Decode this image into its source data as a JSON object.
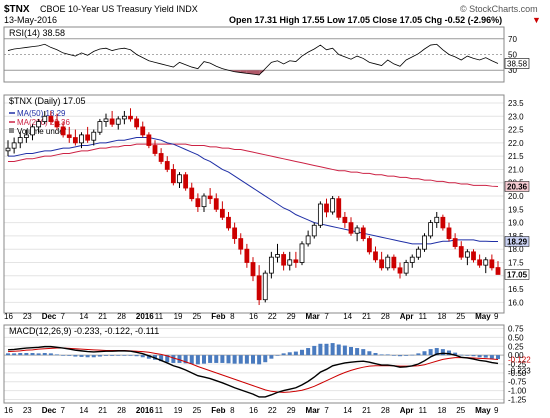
{
  "header": {
    "symbol": "$TNX",
    "name": "CBOE 10-Year US Treasury Yield INDX",
    "date": "13-May-2016",
    "watermark": "© StockCharts.com",
    "quote": "Open 17.31  High 17.55  Low 17.05  Close 17.05  Chg -0.52 (-2.96%)",
    "quote_arrow": "▼"
  },
  "rsi_panel": {
    "label": "RSI(14) 38.58",
    "last_value": "38.58",
    "ticks": [
      "70",
      "50",
      "30"
    ]
  },
  "price_panel": {
    "legend_title": "$TNX (Daily) 17.05",
    "legend_ma50": "MA(50) 18.29",
    "legend_ma200": "MA(200) 20.36",
    "legend_volume": "Volume undef",
    "ticks": [
      "23.5",
      "23.0",
      "22.5",
      "22.0",
      "21.5",
      "21.0",
      "20.5",
      "20.0",
      "19.5",
      "19.0",
      "18.5",
      "18.0",
      "17.5",
      "17.0",
      "16.5",
      "16.0"
    ],
    "last_close_label": "17.05",
    "ma50_label": "18.29",
    "ma200_label": "20.36"
  },
  "xaxis_ticks": [
    "16",
    "23",
    "Dec",
    "7",
    "14",
    "21",
    "28",
    "2016",
    "11",
    "19",
    "25",
    "Feb",
    "8",
    "16",
    "22",
    "29",
    "Mar",
    "7",
    "14",
    "21",
    "28",
    "Apr",
    "11",
    "18",
    "25",
    "May",
    "9"
  ],
  "macd_panel": {
    "label": "MACD(12,26,9) -0.233, -0.122, -0.111",
    "ticks": [
      "0.75",
      "0.50",
      "0.25",
      "0.00",
      "-0.25",
      "-0.50",
      "-0.75",
      "-1.00",
      "-1.25"
    ],
    "label_macd": "-0.233",
    "label_signal": "-0.122"
  },
  "colors": {
    "up": "#000000",
    "down": "#cc0000",
    "ma50": "#1f2fa6",
    "ma200": "#cc2244",
    "macd_line": "#000000",
    "signal_line": "#cc0000",
    "histogram": "#4a7bbf",
    "grid": "#e4e4e4"
  },
  "chart_data": {
    "type": "candlestick",
    "title": "CBOE 10-Year US Treasury Yield INDX",
    "ylim": [
      15.6,
      23.8
    ],
    "ohlc": [
      [
        21.7,
        22.1,
        21.5,
        21.8
      ],
      [
        21.8,
        22.2,
        21.6,
        22.0
      ],
      [
        22.0,
        22.4,
        21.8,
        22.2
      ],
      [
        22.2,
        22.5,
        22.0,
        22.3
      ],
      [
        22.3,
        22.7,
        22.1,
        22.6
      ],
      [
        22.6,
        22.9,
        22.4,
        22.8
      ],
      [
        22.8,
        23.2,
        22.7,
        23.0
      ],
      [
        23.0,
        23.2,
        22.7,
        22.8
      ],
      [
        22.8,
        23.1,
        22.5,
        22.6
      ],
      [
        22.6,
        22.8,
        22.2,
        22.3
      ],
      [
        22.3,
        22.6,
        22.0,
        22.2
      ],
      [
        22.2,
        22.5,
        21.9,
        22.0
      ],
      [
        22.0,
        22.4,
        21.8,
        22.3
      ],
      [
        22.3,
        22.6,
        22.0,
        22.1
      ],
      [
        22.1,
        22.5,
        21.9,
        22.4
      ],
      [
        22.4,
        22.9,
        22.3,
        22.8
      ],
      [
        22.8,
        23.1,
        22.6,
        22.9
      ],
      [
        22.9,
        23.2,
        22.6,
        22.7
      ],
      [
        22.7,
        23.0,
        22.5,
        22.9
      ],
      [
        22.9,
        23.2,
        22.7,
        23.0
      ],
      [
        23.0,
        23.3,
        22.8,
        22.9
      ],
      [
        22.9,
        23.0,
        22.5,
        22.6
      ],
      [
        22.6,
        22.8,
        22.2,
        22.3
      ],
      [
        22.3,
        22.4,
        21.8,
        21.9
      ],
      [
        21.9,
        22.1,
        21.5,
        21.6
      ],
      [
        21.6,
        21.8,
        21.2,
        21.3
      ],
      [
        21.3,
        21.5,
        20.9,
        21.0
      ],
      [
        21.0,
        21.2,
        20.4,
        20.5
      ],
      [
        20.5,
        20.9,
        20.3,
        20.8
      ],
      [
        20.8,
        20.9,
        20.2,
        20.3
      ],
      [
        20.3,
        20.5,
        19.8,
        19.9
      ],
      [
        19.9,
        20.1,
        19.4,
        19.6
      ],
      [
        19.6,
        20.1,
        19.4,
        20.0
      ],
      [
        20.0,
        20.3,
        19.7,
        19.9
      ],
      [
        19.9,
        20.1,
        19.4,
        19.5
      ],
      [
        19.5,
        19.8,
        19.1,
        19.2
      ],
      [
        19.2,
        19.4,
        18.7,
        18.8
      ],
      [
        18.8,
        19.0,
        18.2,
        18.4
      ],
      [
        18.4,
        18.6,
        17.8,
        18.0
      ],
      [
        18.0,
        18.2,
        17.3,
        17.5
      ],
      [
        17.5,
        17.7,
        16.8,
        17.0
      ],
      [
        17.0,
        17.4,
        15.9,
        16.1
      ],
      [
        16.1,
        17.2,
        16.0,
        17.1
      ],
      [
        17.1,
        17.9,
        16.9,
        17.7
      ],
      [
        17.7,
        18.2,
        17.5,
        17.8
      ],
      [
        17.8,
        17.9,
        17.2,
        17.4
      ],
      [
        17.4,
        17.9,
        17.2,
        17.6
      ],
      [
        17.6,
        17.9,
        17.3,
        17.5
      ],
      [
        17.5,
        18.3,
        17.4,
        18.2
      ],
      [
        18.2,
        18.7,
        18.1,
        18.5
      ],
      [
        18.5,
        19.0,
        18.4,
        18.9
      ],
      [
        18.9,
        19.8,
        18.8,
        19.7
      ],
      [
        19.7,
        19.9,
        19.2,
        19.4
      ],
      [
        19.4,
        20.0,
        19.3,
        19.9
      ],
      [
        19.9,
        20.0,
        19.1,
        19.2
      ],
      [
        19.2,
        19.4,
        18.8,
        19.0
      ],
      [
        19.0,
        19.2,
        18.5,
        18.6
      ],
      [
        18.6,
        18.9,
        18.3,
        18.8
      ],
      [
        18.8,
        18.9,
        18.3,
        18.4
      ],
      [
        18.4,
        18.5,
        17.8,
        17.9
      ],
      [
        17.9,
        18.1,
        17.5,
        17.6
      ],
      [
        17.6,
        17.9,
        17.2,
        17.3
      ],
      [
        17.3,
        17.8,
        17.2,
        17.7
      ],
      [
        17.7,
        17.8,
        17.2,
        17.3
      ],
      [
        17.3,
        17.5,
        16.9,
        17.1
      ],
      [
        17.1,
        17.6,
        17.0,
        17.5
      ],
      [
        17.5,
        17.8,
        17.3,
        17.7
      ],
      [
        17.7,
        18.1,
        17.6,
        18.0
      ],
      [
        18.0,
        18.6,
        17.9,
        18.5
      ],
      [
        18.5,
        19.1,
        18.4,
        19.0
      ],
      [
        19.0,
        19.4,
        18.8,
        19.2
      ],
      [
        19.2,
        19.3,
        18.7,
        18.8
      ],
      [
        18.8,
        19.0,
        18.3,
        18.4
      ],
      [
        18.4,
        18.6,
        18.0,
        18.1
      ],
      [
        18.1,
        18.3,
        17.6,
        17.7
      ],
      [
        17.7,
        18.0,
        17.4,
        17.9
      ],
      [
        17.9,
        18.0,
        17.5,
        17.6
      ],
      [
        17.6,
        17.8,
        17.3,
        17.4
      ],
      [
        17.4,
        17.7,
        17.1,
        17.6
      ],
      [
        17.6,
        17.8,
        17.2,
        17.3
      ],
      [
        17.31,
        17.55,
        17.05,
        17.05
      ]
    ],
    "ma50": [
      21.5,
      21.5,
      21.55,
      21.6,
      21.6,
      21.65,
      21.7,
      21.7,
      21.75,
      21.8,
      21.8,
      21.85,
      21.9,
      21.9,
      21.95,
      22.0,
      22.0,
      22.05,
      22.1,
      22.1,
      22.15,
      22.2,
      22.2,
      22.2,
      22.15,
      22.1,
      22.0,
      21.95,
      21.85,
      21.75,
      21.65,
      21.55,
      21.4,
      21.3,
      21.15,
      21.0,
      20.9,
      20.75,
      20.6,
      20.45,
      20.3,
      20.15,
      20.0,
      19.85,
      19.7,
      19.55,
      19.45,
      19.3,
      19.2,
      19.1,
      19.0,
      18.95,
      18.9,
      18.85,
      18.8,
      18.75,
      18.7,
      18.65,
      18.6,
      18.55,
      18.5,
      18.45,
      18.4,
      18.35,
      18.3,
      18.25,
      18.2,
      18.2,
      18.2,
      18.2,
      18.25,
      18.3,
      18.3,
      18.35,
      18.35,
      18.35,
      18.35,
      18.3,
      18.3,
      18.29,
      18.29
    ],
    "ma200": [
      21.3,
      21.3,
      21.35,
      21.4,
      21.4,
      21.45,
      21.5,
      21.5,
      21.55,
      21.6,
      21.6,
      21.65,
      21.7,
      21.7,
      21.75,
      21.8,
      21.8,
      21.85,
      21.85,
      21.9,
      21.9,
      21.95,
      21.95,
      21.95,
      21.95,
      21.95,
      21.95,
      21.95,
      21.95,
      21.95,
      21.9,
      21.9,
      21.9,
      21.85,
      21.85,
      21.8,
      21.8,
      21.75,
      21.75,
      21.7,
      21.65,
      21.6,
      21.55,
      21.5,
      21.45,
      21.4,
      21.35,
      21.3,
      21.25,
      21.2,
      21.15,
      21.1,
      21.05,
      21.0,
      20.95,
      20.95,
      20.9,
      20.9,
      20.85,
      20.85,
      20.8,
      20.8,
      20.75,
      20.75,
      20.7,
      20.7,
      20.65,
      20.65,
      20.6,
      20.6,
      20.55,
      20.55,
      20.5,
      20.5,
      20.45,
      20.45,
      20.4,
      20.4,
      20.4,
      20.37,
      20.36
    ],
    "rsi": [
      55,
      57,
      58,
      59,
      60,
      61,
      63,
      59,
      56,
      52,
      50,
      48,
      52,
      49,
      54,
      57,
      58,
      55,
      57,
      58,
      56,
      50,
      46,
      42,
      40,
      38,
      36,
      34,
      40,
      37,
      34,
      32,
      41,
      39,
      35,
      32,
      30,
      28,
      27,
      26,
      25,
      24,
      32,
      40,
      42,
      38,
      42,
      41,
      48,
      53,
      57,
      62,
      56,
      58,
      50,
      47,
      44,
      48,
      45,
      40,
      38,
      36,
      43,
      38,
      35,
      43,
      47,
      51,
      57,
      62,
      63,
      56,
      50,
      47,
      43,
      48,
      45,
      43,
      46,
      42,
      38.58
    ],
    "macd": [
      0.15,
      0.16,
      0.18,
      0.2,
      0.21,
      0.22,
      0.24,
      0.24,
      0.22,
      0.2,
      0.17,
      0.14,
      0.12,
      0.1,
      0.09,
      0.1,
      0.11,
      0.11,
      0.12,
      0.12,
      0.11,
      0.08,
      0.04,
      -0.02,
      -0.08,
      -0.15,
      -0.22,
      -0.3,
      -0.35,
      -0.42,
      -0.5,
      -0.58,
      -0.62,
      -0.66,
      -0.72,
      -0.78,
      -0.85,
      -0.92,
      -0.98,
      -1.04,
      -1.1,
      -1.18,
      -1.18,
      -1.12,
      -1.05,
      -1.0,
      -0.96,
      -0.92,
      -0.84,
      -0.74,
      -0.62,
      -0.48,
      -0.4,
      -0.3,
      -0.26,
      -0.22,
      -0.2,
      -0.18,
      -0.17,
      -0.2,
      -0.24,
      -0.28,
      -0.28,
      -0.3,
      -0.34,
      -0.33,
      -0.3,
      -0.25,
      -0.16,
      -0.05,
      0.03,
      0.05,
      0.04,
      0.0,
      -0.06,
      -0.08,
      -0.11,
      -0.15,
      -0.17,
      -0.21,
      -0.233
    ],
    "signal": [
      0.1,
      0.11,
      0.12,
      0.14,
      0.15,
      0.17,
      0.18,
      0.19,
      0.2,
      0.2,
      0.19,
      0.18,
      0.17,
      0.16,
      0.15,
      0.14,
      0.13,
      0.13,
      0.13,
      0.13,
      0.12,
      0.11,
      0.1,
      0.08,
      0.05,
      0.02,
      -0.02,
      -0.08,
      -0.13,
      -0.19,
      -0.25,
      -0.32,
      -0.38,
      -0.44,
      -0.5,
      -0.56,
      -0.62,
      -0.68,
      -0.74,
      -0.8,
      -0.86,
      -0.92,
      -0.98,
      -1.02,
      -1.04,
      -1.05,
      -1.04,
      -1.02,
      -0.99,
      -0.94,
      -0.88,
      -0.8,
      -0.72,
      -0.64,
      -0.56,
      -0.49,
      -0.43,
      -0.38,
      -0.34,
      -0.31,
      -0.3,
      -0.3,
      -0.3,
      -0.3,
      -0.31,
      -0.31,
      -0.31,
      -0.3,
      -0.27,
      -0.22,
      -0.17,
      -0.12,
      -0.09,
      -0.07,
      -0.07,
      -0.07,
      -0.08,
      -0.09,
      -0.1,
      -0.11,
      -0.122
    ]
  }
}
